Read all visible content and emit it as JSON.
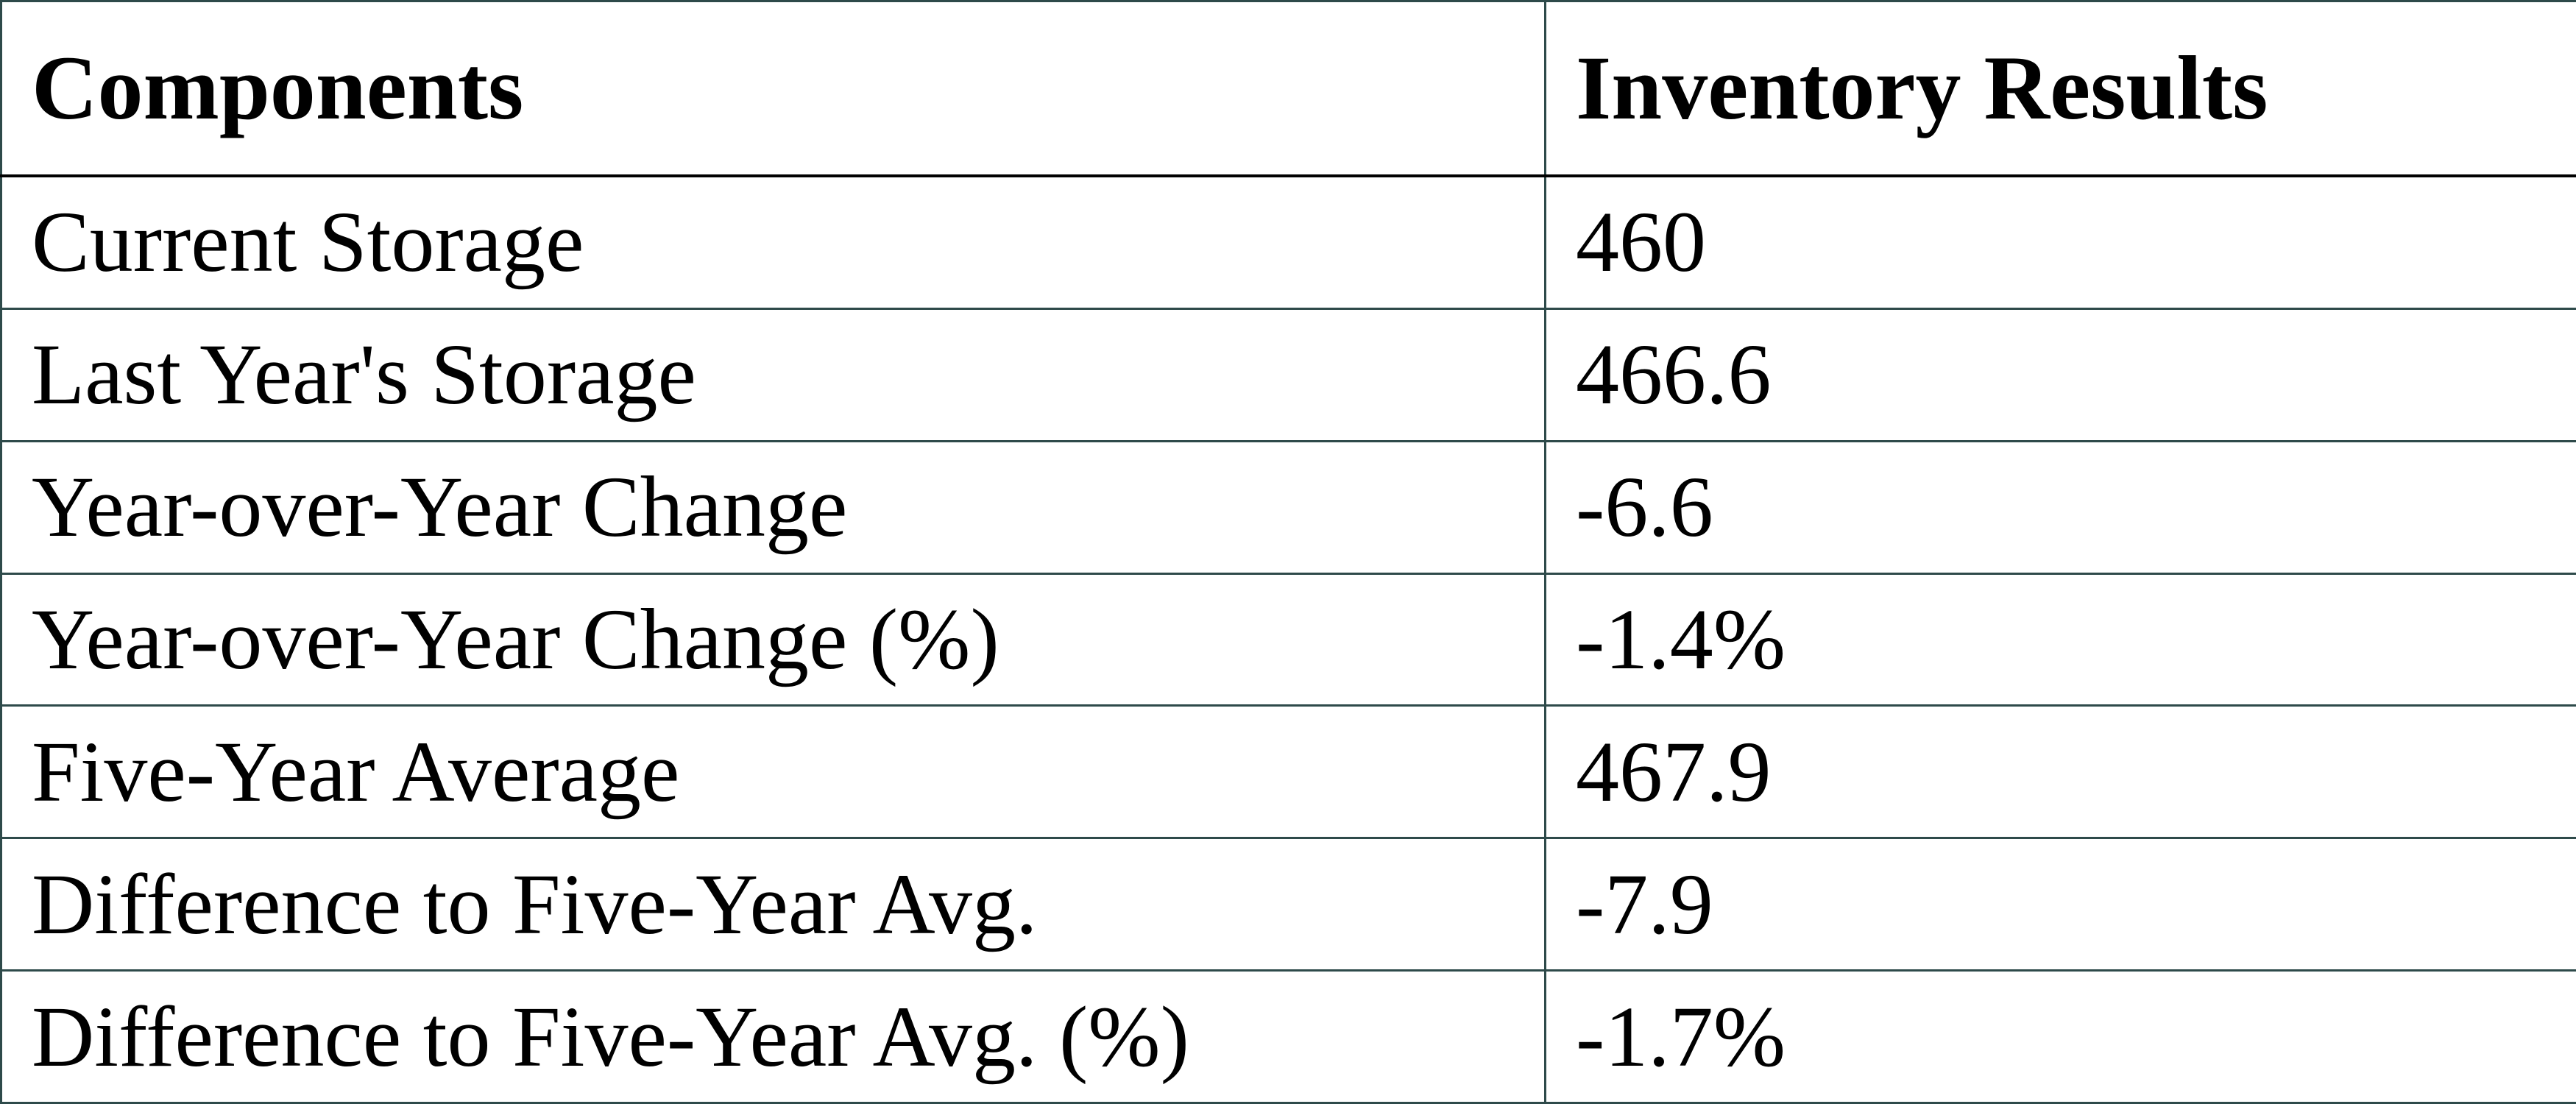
{
  "table": {
    "header": [
      "Components",
      "Inventory Results"
    ],
    "rows": [
      [
        "Current Storage",
        "460"
      ],
      [
        "Last Year's Storage",
        "466.6"
      ],
      [
        "Year-over-Year Change",
        "-6.6"
      ],
      [
        "Year-over-Year Change (%)",
        "-1.4%"
      ],
      [
        "Five-Year Average",
        "467.9"
      ],
      [
        "Difference to Five-Year Avg.",
        "-7.9"
      ],
      [
        "Difference to Five-Year Avg. (%)",
        "-1.7%"
      ]
    ]
  }
}
